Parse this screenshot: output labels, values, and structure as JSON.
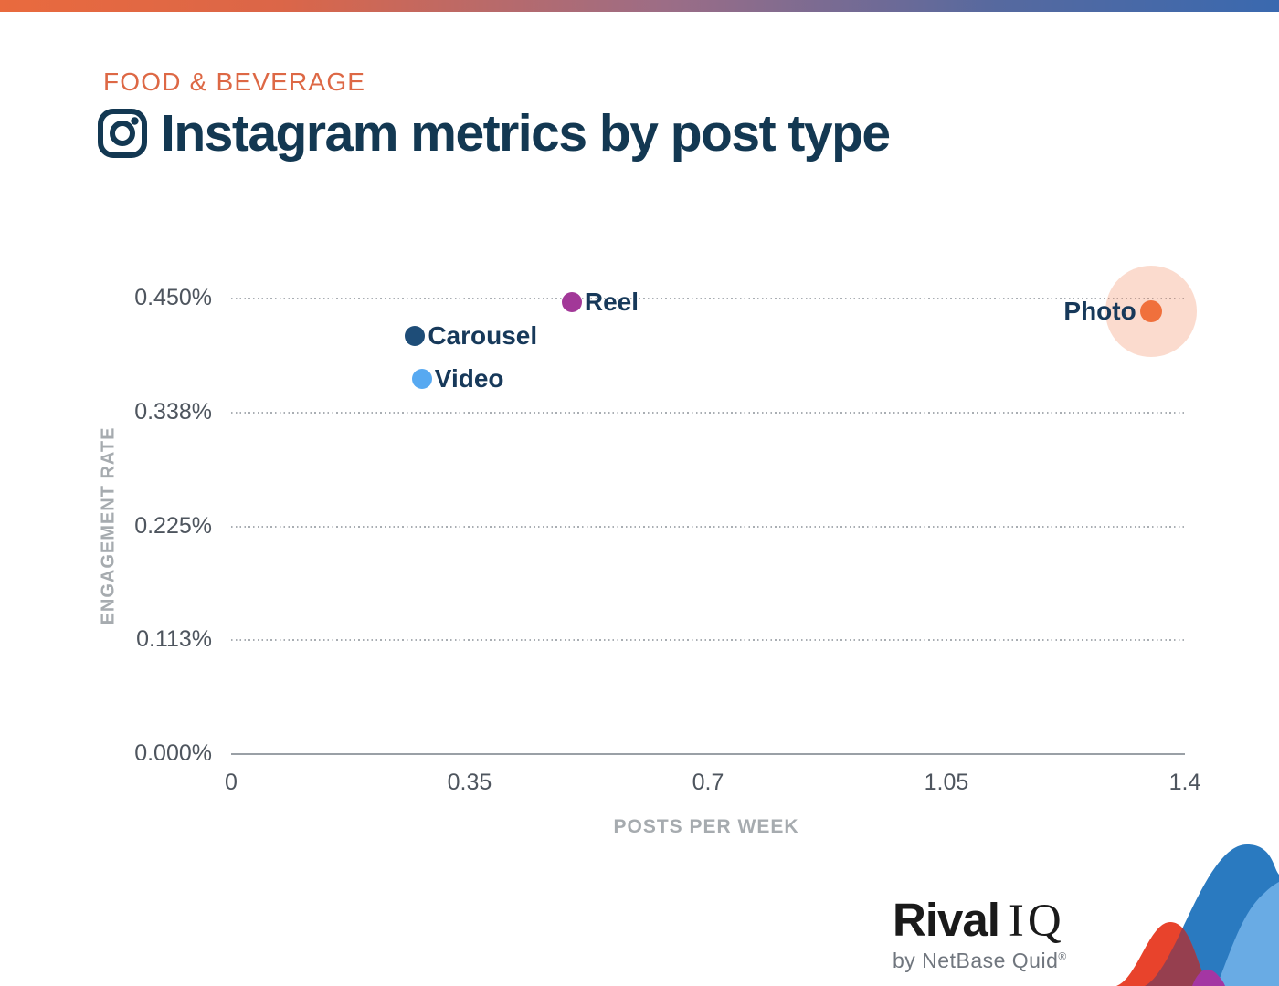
{
  "header": {
    "category": "FOOD & BEVERAGE",
    "title": "Instagram metrics by post type",
    "title_icon": "instagram-icon"
  },
  "chart_data": {
    "type": "scatter",
    "title": "Instagram metrics by post type",
    "subtitle_category": "FOOD & BEVERAGE",
    "xlabel": "POSTS PER WEEK",
    "ylabel": "ENGAGEMENT RATE",
    "xlim": [
      0,
      1.4
    ],
    "ylim": [
      0,
      0.45
    ],
    "grid": "horizontal-dotted",
    "legend_position": "labels-next-to-points",
    "x_ticks": [
      {
        "value": 0,
        "label": "0"
      },
      {
        "value": 0.35,
        "label": "0.35"
      },
      {
        "value": 0.7,
        "label": "0.7"
      },
      {
        "value": 1.05,
        "label": "1.05"
      },
      {
        "value": 1.4,
        "label": "1.4"
      }
    ],
    "y_ticks": [
      {
        "value": 0,
        "label": "0.000%"
      },
      {
        "value": 0.1125,
        "label": "0.113%"
      },
      {
        "value": 0.225,
        "label": "0.225%"
      },
      {
        "value": 0.3375,
        "label": "0.338%"
      },
      {
        "value": 0.45,
        "label": "0.450%"
      }
    ],
    "points": [
      {
        "name": "Reel",
        "posts_per_week": 0.5,
        "engagement_rate_pct": 0.446,
        "color": "#A23898",
        "label_side": "right",
        "dot_radius_px": 11
      },
      {
        "name": "Carousel",
        "posts_per_week": 0.27,
        "engagement_rate_pct": 0.413,
        "color": "#1E4D78",
        "label_side": "right",
        "dot_radius_px": 11
      },
      {
        "name": "Video",
        "posts_per_week": 0.28,
        "engagement_rate_pct": 0.371,
        "color": "#57A9F1",
        "label_side": "right",
        "dot_radius_px": 11
      },
      {
        "name": "Photo",
        "posts_per_week": 1.35,
        "engagement_rate_pct": 0.437,
        "color": "#F0703C",
        "label_side": "left",
        "dot_radius_px": 12,
        "halo": true,
        "halo_color": "rgba(240,112,60,0.25)",
        "halo_radius_px": 50
      }
    ]
  },
  "branding": {
    "logo_primary": "Rival",
    "logo_secondary": "IQ",
    "tagline": "by NetBase Quid",
    "registered_mark": "®"
  },
  "colors": {
    "category_text": "#DD6845",
    "title_text": "#133852",
    "point_label_text": "#17395A",
    "grid_line": "#A9AEB3",
    "axis_line": "#9AA0A6",
    "tick_text": "#4E555E",
    "axis_title_text": "#A6ABAF",
    "accent_bar_left": "#E96A3E",
    "accent_bar_right": "#3A69AF",
    "wave_red": "#E8432C",
    "wave_dark_blue": "#2A7AC0",
    "wave_light_blue": "#69ABE4",
    "wave_overlap_dark_red": "#963F4F",
    "wave_magenta": "#A436A3"
  }
}
